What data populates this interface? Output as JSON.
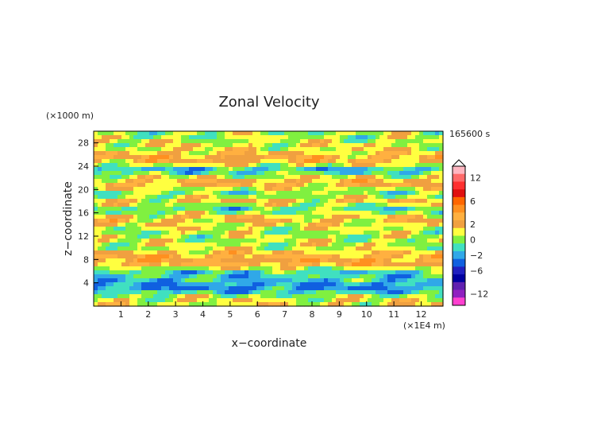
{
  "chart_data": {
    "type": "heatmap",
    "title": "Zonal Velocity",
    "xlabel": "x−coordinate",
    "ylabel": "z−coordinate",
    "x_unit": "(×1E4 m)",
    "y_unit": "(×1000 m)",
    "time_label": "165600 s",
    "xlim": [
      0,
      12.8
    ],
    "ylim": [
      0,
      30
    ],
    "x_ticks": [
      "1",
      "2",
      "3",
      "4",
      "5",
      "6",
      "7",
      "8",
      "9",
      "10",
      "11",
      "12"
    ],
    "y_ticks": [
      "4",
      "8",
      "12",
      "16",
      "20",
      "24",
      "28"
    ],
    "colorbar": {
      "labels": [
        "12",
        "6",
        "2",
        "0",
        "−2",
        "−6",
        "−12"
      ],
      "levels": [
        {
          "value": 14,
          "color": "#ffb6c1"
        },
        {
          "value": 12,
          "color": "#ff6a6a"
        },
        {
          "value": 10,
          "color": "#ff3030"
        },
        {
          "value": 8,
          "color": "#e01010"
        },
        {
          "value": 6,
          "color": "#ff6600"
        },
        {
          "value": 4,
          "color": "#ff9020"
        },
        {
          "value": 3,
          "color": "#ffb040"
        },
        {
          "value": 2,
          "color": "#f0a040"
        },
        {
          "value": 1,
          "color": "#ffff40"
        },
        {
          "value": 0,
          "color": "#80f040"
        },
        {
          "value": -1,
          "color": "#40e0c0"
        },
        {
          "value": -2,
          "color": "#30a8e8"
        },
        {
          "value": -4,
          "color": "#1060e0"
        },
        {
          "value": -6,
          "color": "#2020c0"
        },
        {
          "value": -8,
          "color": "#0000a0"
        },
        {
          "value": -10,
          "color": "#6020b0"
        },
        {
          "value": -12,
          "color": "#9020c0"
        },
        {
          "value": -14,
          "color": "#ff40d0"
        }
      ]
    },
    "bands": [
      {
        "z": 29.0,
        "value": 0.2
      },
      {
        "z": 27.5,
        "value": 1.0
      },
      {
        "z": 25.0,
        "value": 2.3
      },
      {
        "z": 23.0,
        "value": -2.5
      },
      {
        "z": 22.0,
        "value": 2.4
      },
      {
        "z": 20.5,
        "value": 2.6
      },
      {
        "z": 19.5,
        "value": -1.5
      },
      {
        "z": 18.0,
        "value": 2.2
      },
      {
        "z": 16.5,
        "value": -2.2
      },
      {
        "z": 15.5,
        "value": 2.5
      },
      {
        "z": 14.0,
        "value": 1.0
      },
      {
        "z": 12.5,
        "value": 0.3
      },
      {
        "z": 10.5,
        "value": 0.6
      },
      {
        "z": 8.0,
        "value": 2.5
      },
      {
        "z": 5.0,
        "value": -1.2
      },
      {
        "z": 3.0,
        "value": -2.8
      },
      {
        "z": 1.5,
        "value": 1.0
      }
    ],
    "grid": false,
    "legend": "right"
  }
}
